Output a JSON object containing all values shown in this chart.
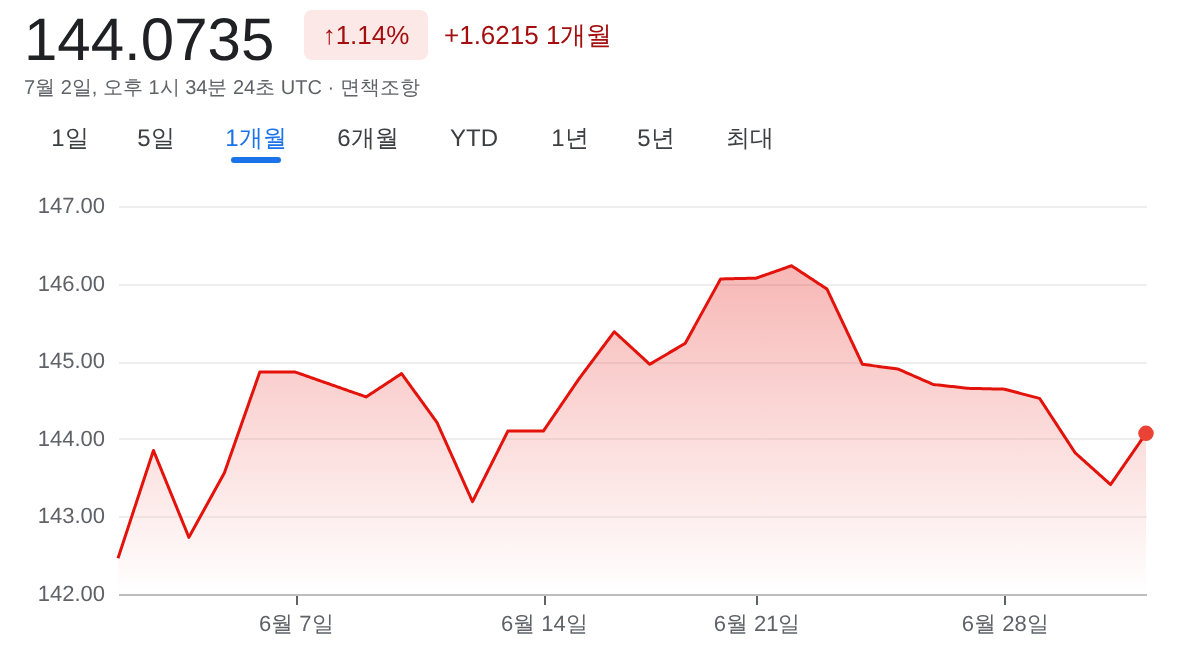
{
  "chart_data": {
    "type": "area",
    "title": "144.0735",
    "subtitle": "7월 2일, 오후 1시 34분 24초 UTC · 면책조항",
    "annotations": [
      "↑1.14%",
      "+1.6215 1개월",
      "1일",
      "5일",
      "1개월",
      "6개월",
      "YTD",
      "1년",
      "5년",
      "최대"
    ],
    "categories": [
      null,
      null,
      null,
      null,
      null,
      "6월 7일",
      null,
      null,
      null,
      null,
      null,
      null,
      "6월 14일",
      null,
      null,
      null,
      null,
      null,
      "6월 21일",
      null,
      null,
      null,
      null,
      null,
      null,
      "6월 28일",
      null,
      null,
      null,
      null
    ],
    "series": [
      {
        "color": "#e3120b",
        "values": [
          142.46,
          143.85,
          142.73,
          143.56,
          144.86,
          144.86,
          144.7,
          144.54,
          144.84,
          144.21,
          143.19,
          144.1,
          144.1,
          144.77,
          145.38,
          144.96,
          145.23,
          146.06,
          146.07,
          146.23,
          145.93,
          144.96,
          144.9,
          144.7,
          144.65,
          144.64,
          144.52,
          143.82,
          143.41,
          144.07
        ]
      },
      {
        "type": "scatter",
        "color": "#ea4335",
        "marker": "circle",
        "values": [
          null,
          null,
          null,
          null,
          null,
          null,
          null,
          null,
          null,
          null,
          null,
          null,
          null,
          null,
          null,
          null,
          null,
          null,
          null,
          null,
          null,
          null,
          null,
          null,
          null,
          null,
          null,
          null,
          null,
          144.07
        ]
      }
    ],
    "ylim": [
      142,
      147
    ],
    "yticks": [
      {
        "value": 142,
        "label": "142.00"
      },
      {
        "value": 143,
        "label": "143.00"
      },
      {
        "value": 144,
        "label": "144.00"
      },
      {
        "value": 145,
        "label": "145.00"
      },
      {
        "value": 146,
        "label": "146.00"
      },
      {
        "value": 147,
        "label": "147.00"
      }
    ],
    "grid": "y"
  }
}
